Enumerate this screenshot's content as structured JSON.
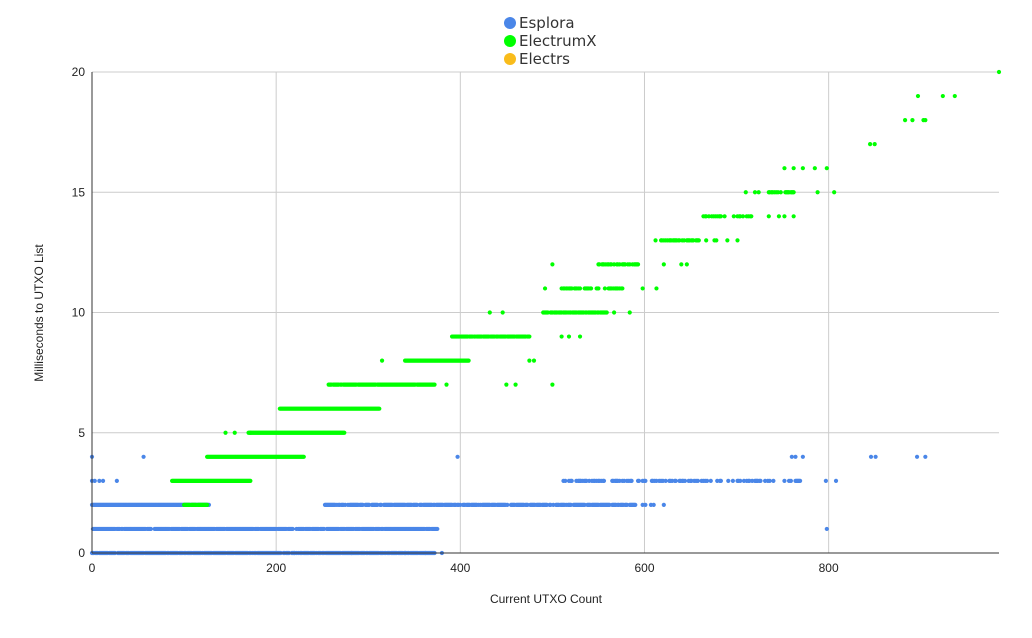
{
  "chart_data": {
    "type": "scatter",
    "xlabel": "Current UTXO Count",
    "ylabel": "Milliseconds to UTXO List",
    "xlim": [
      0,
      985
    ],
    "ylim": [
      0,
      20
    ],
    "x_ticks": [
      "0",
      "200",
      "400",
      "600",
      "800"
    ],
    "y_ticks": [
      "0",
      "5",
      "10",
      "15",
      "20"
    ],
    "grid": true,
    "legend_position": "top-center",
    "series": [
      {
        "name": "Esplora",
        "color": "#4a86e8",
        "bands": [
          {
            "y": 0,
            "x": [
              0,
              372
            ],
            "density": 0.85
          },
          {
            "y": 1,
            "x": [
              0,
              375
            ],
            "density": 0.9
          },
          {
            "y": 2,
            "x": [
              0,
              127
            ],
            "density": 1.0
          },
          {
            "y": 2,
            "x": [
              253,
              590
            ],
            "density": 0.8
          },
          {
            "y": 3,
            "x": [
              510,
              770
            ],
            "density": 0.4
          }
        ],
        "points": [
          [
            0,
            4
          ],
          [
            56,
            4
          ],
          [
            397,
            4
          ],
          [
            760,
            4
          ],
          [
            764,
            4
          ],
          [
            772,
            4
          ],
          [
            846,
            4
          ],
          [
            851,
            4
          ],
          [
            896,
            4
          ],
          [
            905,
            4
          ],
          [
            0,
            3
          ],
          [
            3,
            3
          ],
          [
            8,
            3
          ],
          [
            12,
            3
          ],
          [
            27,
            3
          ],
          [
            797,
            3
          ],
          [
            808,
            3
          ],
          [
            598,
            2
          ],
          [
            601,
            2
          ],
          [
            610,
            2
          ],
          [
            621,
            2
          ],
          [
            607,
            2
          ],
          [
            798,
            1
          ],
          [
            380,
            0
          ],
          [
            340,
            0
          ],
          [
            362,
            0
          ],
          [
            282,
            0
          ],
          [
            220,
            0
          ]
        ]
      },
      {
        "name": "ElectrumX",
        "color": "#00ff00",
        "bands": [
          {
            "y": 2,
            "x": [
              100,
              125
            ],
            "density": 0.8
          },
          {
            "y": 3,
            "x": [
              87,
              172
            ],
            "density": 1.0
          },
          {
            "y": 4,
            "x": [
              125,
              230
            ],
            "density": 1.0
          },
          {
            "y": 5,
            "x": [
              170,
              274
            ],
            "density": 1.0
          },
          {
            "y": 6,
            "x": [
              204,
              312
            ],
            "density": 1.0
          },
          {
            "y": 7,
            "x": [
              256,
              372
            ],
            "density": 0.9
          },
          {
            "y": 8,
            "x": [
              340,
              409
            ],
            "density": 1.0
          },
          {
            "y": 9,
            "x": [
              390,
              478
            ],
            "density": 0.9
          },
          {
            "y": 10,
            "x": [
              490,
              560
            ],
            "density": 0.8
          },
          {
            "y": 11,
            "x": [
              510,
              576
            ],
            "density": 0.6
          },
          {
            "y": 12,
            "x": [
              549,
              593
            ],
            "density": 0.6
          },
          {
            "y": 13,
            "x": [
              612,
              660
            ],
            "density": 0.6
          },
          {
            "y": 14,
            "x": [
              664,
              718
            ],
            "density": 0.5
          },
          {
            "y": 15,
            "x": [
              735,
              762
            ],
            "density": 0.5
          }
        ],
        "points": [
          [
            145,
            5
          ],
          [
            155,
            5
          ],
          [
            172,
            5
          ],
          [
            385,
            7
          ],
          [
            450,
            7
          ],
          [
            460,
            7
          ],
          [
            500,
            7
          ],
          [
            315,
            8
          ],
          [
            475,
            8
          ],
          [
            480,
            8
          ],
          [
            510,
            9
          ],
          [
            518,
            9
          ],
          [
            530,
            9
          ],
          [
            432,
            10
          ],
          [
            446,
            10
          ],
          [
            567,
            10
          ],
          [
            584,
            10
          ],
          [
            492,
            11
          ],
          [
            598,
            11
          ],
          [
            613,
            11
          ],
          [
            500,
            12
          ],
          [
            621,
            12
          ],
          [
            640,
            12
          ],
          [
            646,
            12
          ],
          [
            667,
            13
          ],
          [
            676,
            13
          ],
          [
            678,
            13
          ],
          [
            690,
            13
          ],
          [
            701,
            13
          ],
          [
            735,
            14
          ],
          [
            746,
            14
          ],
          [
            752,
            14
          ],
          [
            762,
            14
          ],
          [
            710,
            15
          ],
          [
            720,
            15
          ],
          [
            724,
            15
          ],
          [
            788,
            15
          ],
          [
            806,
            15
          ],
          [
            752,
            16
          ],
          [
            762,
            16
          ],
          [
            772,
            16
          ],
          [
            785,
            16
          ],
          [
            798,
            16
          ],
          [
            845,
            17
          ],
          [
            850,
            17
          ],
          [
            883,
            18
          ],
          [
            891,
            18
          ],
          [
            903,
            18
          ],
          [
            905,
            18
          ],
          [
            897,
            19
          ],
          [
            924,
            19
          ],
          [
            937,
            19
          ],
          [
            985,
            20
          ]
        ]
      },
      {
        "name": "Electrs",
        "color": "#f9bc1b",
        "bands": [],
        "points": []
      }
    ]
  }
}
